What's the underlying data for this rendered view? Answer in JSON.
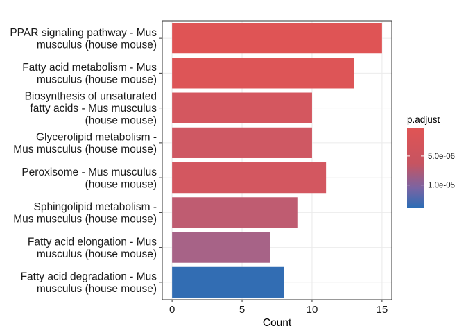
{
  "chart_data": {
    "type": "bar",
    "orientation": "horizontal",
    "categories": [
      [
        "PPAR signaling pathway - Mus",
        "musculus (house mouse)"
      ],
      [
        "Fatty acid metabolism - Mus",
        "musculus (house mouse)"
      ],
      [
        "Biosynthesis of unsaturated",
        "fatty acids - Mus musculus",
        "(house mouse)"
      ],
      [
        "Glycerolipid metabolism -",
        "Mus musculus (house mouse)"
      ],
      [
        "Peroxisome - Mus musculus",
        "(house mouse)"
      ],
      [
        "Sphingolipid metabolism -",
        "Mus musculus (house mouse)"
      ],
      [
        "Fatty acid elongation - Mus",
        "musculus (house mouse)"
      ],
      [
        "Fatty acid degradation - Mus",
        "musculus (house mouse)"
      ]
    ],
    "values": [
      15,
      13,
      10,
      10,
      11,
      9,
      7,
      8
    ],
    "p_adjust": [
      2e-07,
      4e-07,
      1.2e-06,
      1.6e-06,
      1.3e-06,
      3e-06,
      5.2e-06,
      1.35e-05
    ],
    "xlabel": "Count",
    "ylabel": "",
    "xlim": [
      -0.7,
      15.7
    ],
    "xticks": [
      0,
      5,
      10,
      15
    ],
    "grid": true,
    "legend": {
      "title": "p.adjust",
      "position": "right",
      "ticks": [
        {
          "value": 5e-06,
          "label": "5.0e-06"
        },
        {
          "value": 1e-05,
          "label": "1.0e-05"
        }
      ],
      "range": [
        1e-07,
        1.4e-05
      ],
      "low_color": "#e05454",
      "high_color": "#2a6db5",
      "mid_color": "#8a6aa0"
    }
  }
}
